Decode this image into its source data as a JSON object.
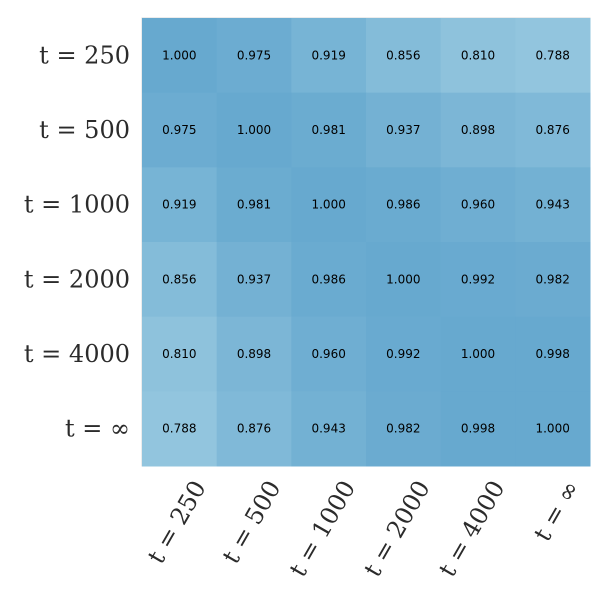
{
  "chart_data": {
    "type": "heatmap",
    "row_labels": [
      "t = 250",
      "t = 500",
      "t = 1000",
      "t = 2000",
      "t = 4000",
      "t = ∞"
    ],
    "col_labels": [
      "t = 250",
      "t = 500",
      "t = 1000",
      "t = 2000",
      "t = 4000",
      "t = ∞"
    ],
    "values": [
      [
        1.0,
        0.975,
        0.919,
        0.856,
        0.81,
        0.788
      ],
      [
        0.975,
        1.0,
        0.981,
        0.937,
        0.898,
        0.876
      ],
      [
        0.919,
        0.981,
        1.0,
        0.986,
        0.96,
        0.943
      ],
      [
        0.856,
        0.937,
        0.986,
        1.0,
        0.992,
        0.982
      ],
      [
        0.81,
        0.898,
        0.96,
        0.992,
        1.0,
        0.998
      ],
      [
        0.788,
        0.876,
        0.943,
        0.982,
        0.998,
        1.0
      ]
    ],
    "value_format": "0.000",
    "colormap": {
      "low": "#92c5de",
      "high": "#67a9cf"
    },
    "x_tick_rotation_deg": -60,
    "grid": false,
    "colorbar": false
  }
}
